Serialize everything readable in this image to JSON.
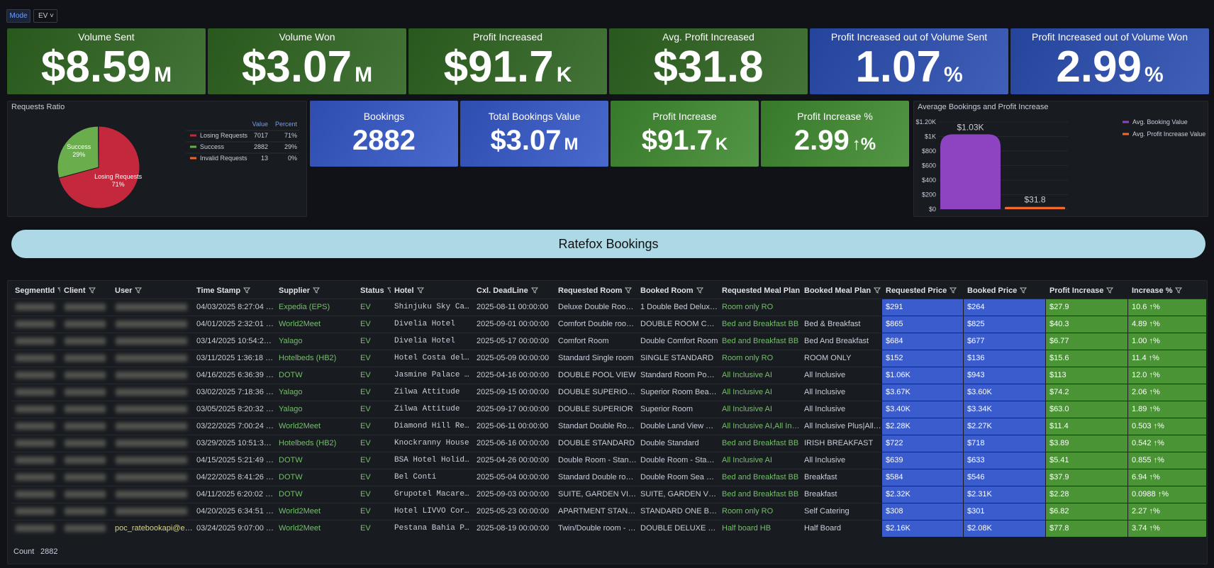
{
  "toolbar": {
    "mode_label": "Mode",
    "mode_value": "EV"
  },
  "stats_top": [
    {
      "title": "Volume Sent",
      "value": "$8.59",
      "unit": "M",
      "color": "#2f6421"
    },
    {
      "title": "Volume Won",
      "value": "$3.07",
      "unit": "M",
      "color": "#2f6421"
    },
    {
      "title": "Profit Increased",
      "value": "$91.7",
      "unit": "K",
      "color": "#2f6421"
    },
    {
      "title": "Avg. Profit Increased",
      "value": "$31.8",
      "unit": null,
      "color": "#2f6421"
    },
    {
      "title": "Profit Increased out of Volume Sent",
      "value": "1.07",
      "unit": "%",
      "color": "#2a4db0"
    },
    {
      "title": "Profit Increased out of Volume Won",
      "value": "2.99",
      "unit": "%",
      "color": "#2a4db0"
    }
  ],
  "requests_ratio": {
    "type": "pie",
    "title": "Requests Ratio",
    "legend_headers": [
      "Value",
      "Percent"
    ],
    "categories": [
      "Losing Requests",
      "Success",
      "Invalid Requests"
    ],
    "values": [
      7017,
      2882,
      13
    ],
    "percent_labels": [
      "71%",
      "29%",
      "0%"
    ],
    "colors": [
      "#c4283c",
      "#6aad4d",
      "#f2652a"
    ]
  },
  "stats_mid": [
    {
      "title": "Bookings",
      "value": 2882,
      "unit": null,
      "color": "#3558c8"
    },
    {
      "title": "Total Bookings Value",
      "value": "$3.07",
      "unit": "M",
      "color": "#3558c8"
    },
    {
      "title": "Profit Increase",
      "value": "$91.7",
      "unit": "K",
      "color": "#3f8a30"
    },
    {
      "title": "Profit Increase %",
      "value": "2.99",
      "unit": "↑%",
      "color": "#3f8a30"
    }
  ],
  "avg_chart": {
    "type": "bar",
    "title": "Average Bookings and Profit Increase",
    "series": [
      {
        "name": "Avg. Booking Value",
        "color": "#8e44c0",
        "values": [
          1030
        ],
        "value_labels": [
          "$1.03K"
        ]
      },
      {
        "name": "Avg. Profit Increase Value",
        "color": "#f4692b",
        "values": [
          31.8
        ],
        "value_labels": [
          "$31.8"
        ]
      }
    ],
    "ylim": [
      0,
      1200
    ],
    "yticks": [
      {
        "value": 0,
        "label": "$0"
      },
      {
        "value": 200,
        "label": "$200"
      },
      {
        "value": 400,
        "label": "$400"
      },
      {
        "value": 600,
        "label": "$600"
      },
      {
        "value": 800,
        "label": "$800"
      },
      {
        "value": 1000,
        "label": "$1K"
      },
      {
        "value": 1200,
        "label": "$1.20K"
      }
    ]
  },
  "banner": {
    "title": "Ratefox Bookings"
  },
  "table": {
    "columns": [
      {
        "name": "SegmentId"
      },
      {
        "name": "Client"
      },
      {
        "name": "User"
      },
      {
        "name": "Time Stamp"
      },
      {
        "name": "Supplier",
        "text": "#73bf69"
      },
      {
        "name": "Status",
        "text": "#73bf69"
      },
      {
        "name": "Hotel",
        "mono": true
      },
      {
        "name": "Cxl. DeadLine"
      },
      {
        "name": "Requested Room"
      },
      {
        "name": "Booked Room"
      },
      {
        "name": "Requested Meal Plan",
        "text": "#73bf69"
      },
      {
        "name": "Booked Meal Plan"
      },
      {
        "name": "Requested Price",
        "fill": "#3a5ccc"
      },
      {
        "name": "Booked Price",
        "fill": "#3a5ccc"
      },
      {
        "name": "Profit Increase",
        "fill": "#4b9436"
      },
      {
        "name": "Increase %",
        "fill": "#4b9436"
      }
    ],
    "rows": [
      [
        null,
        null,
        null,
        "04/03/2025 8:27:04 pm",
        "Expedia (EPS)",
        "EV",
        "Shinjuku Sky Caps",
        "2025-08-11 00:00:00",
        "Deluxe Double Room, Pri",
        "1 Double Bed Deluxe Dou",
        "Room only RO",
        null,
        "$291",
        "$264",
        "$27.9",
        "10.6 ↑%"
      ],
      [
        null,
        null,
        null,
        "04/01/2025 2:32:01 pm",
        "World2Meet",
        "EV",
        "Divelia Hotel",
        "2025-09-01 00:00:00",
        "Comfort Double room (fu",
        "DOUBLE ROOM COMFORT",
        "Bed and Breakfast BB",
        "Bed & Breakfast",
        "$865",
        "$825",
        "$40.3",
        "4.89 ↑%"
      ],
      [
        null,
        null,
        null,
        "03/14/2025 10:54:26 pm",
        "Yalago",
        "EV",
        "Divelia Hotel",
        "2025-05-17 00:00:00",
        "Comfort Room",
        "Double Comfort Room",
        "Bed and Breakfast BB",
        "Bed And Breakfast",
        "$684",
        "$677",
        "$6.77",
        "1.00 ↑%"
      ],
      [
        null,
        null,
        null,
        "03/11/2025 1:36:18 am",
        "Hotelbeds (HB2)",
        "EV",
        "Hotel Costa del S",
        "2025-05-09 00:00:00",
        "Standard Single room",
        "SINGLE STANDARD",
        "Room only RO",
        "ROOM ONLY",
        "$152",
        "$136",
        "$15.6",
        "11.4 ↑%"
      ],
      [
        null,
        null,
        null,
        "04/16/2025 6:36:39 pm",
        "DOTW",
        "EV",
        "Jasmine Palace Re",
        "2025-04-16 00:00:00",
        "DOUBLE POOL VIEW",
        "Standard Room Pool View",
        "All Inclusive AI",
        "All Inclusive",
        "$1.06K",
        "$943",
        "$113",
        "12.0 ↑%"
      ],
      [
        null,
        null,
        null,
        "03/02/2025 7:18:36 pm",
        "Yalago",
        "EV",
        "Zilwa Attitude",
        "2025-09-15 00:00:00",
        "DOUBLE SUPERIOR BEAC",
        "Superior Room Beachfro",
        "All Inclusive AI",
        "All Inclusive",
        "$3.67K",
        "$3.60K",
        "$74.2",
        "2.06 ↑%"
      ],
      [
        null,
        null,
        null,
        "03/05/2025 8:20:32 pm",
        "Yalago",
        "EV",
        "Zilwa Attitude",
        "2025-09-17 00:00:00",
        "DOUBLE SUPERIOR",
        "Superior Room",
        "All Inclusive AI",
        "All Inclusive",
        "$3.40K",
        "$3.34K",
        "$63.0",
        "1.89 ↑%"
      ],
      [
        null,
        null,
        null,
        "03/22/2025 7:00:24 pm",
        "World2Meet",
        "EV",
        "Diamond Hill Reso",
        "2025-06-11 00:00:00",
        "Standart Double Room La",
        "Double Land View Balco",
        "All Inclusive AI,All Inclusi",
        "All Inclusive Plus|All Incl",
        "$2.28K",
        "$2.27K",
        "$11.4",
        "0.503 ↑%"
      ],
      [
        null,
        null,
        null,
        "03/29/2025 10:51:34 am",
        "Hotelbeds (HB2)",
        "EV",
        "Knockranny House ",
        "2025-06-16 00:00:00",
        "DOUBLE STANDARD",
        "Double Standard",
        "Bed and Breakfast BB",
        "IRISH BREAKFAST",
        "$722",
        "$718",
        "$3.89",
        "0.542 ↑%"
      ],
      [
        null,
        null,
        null,
        "04/15/2025 5:21:49 pm",
        "DOTW",
        "EV",
        "BSA Hotel Holiday",
        "2025-04-26 00:00:00",
        "Double Room - Standard",
        "Double Room - Standard",
        "All Inclusive AI",
        "All Inclusive",
        "$639",
        "$633",
        "$5.41",
        "0.855 ↑%"
      ],
      [
        null,
        null,
        null,
        "04/22/2025 8:41:26 pm",
        "DOTW",
        "EV",
        "Bel Conti",
        "2025-05-04 00:00:00",
        "Standard Double room w",
        "Double Room Sea View",
        "Bed and Breakfast BB",
        "Breakfast",
        "$584",
        "$546",
        "$37.9",
        "6.94 ↑%"
      ],
      [
        null,
        null,
        null,
        "04/11/2025 6:20:02 pm",
        "DOTW",
        "EV",
        "Grupotel Macarell",
        "2025-09-03 00:00:00",
        "SUITE, GARDEN VIEW, B",
        "SUITE, GARDEN VIEW, B",
        "Bed and Breakfast BB",
        "Breakfast",
        "$2.32K",
        "$2.31K",
        "$2.28",
        "0.0988 ↑%"
      ],
      [
        null,
        null,
        null,
        "04/20/2025 6:34:51 pm",
        "World2Meet",
        "EV",
        "Hotel LIVVO Corra",
        "2025-05-23 00:00:00",
        "APARTMENT STANDARD",
        "STANDARD ONE BEDROOM",
        "Room only RO",
        "Self Catering",
        "$308",
        "$301",
        "$6.82",
        "2.27 ↑%"
      ],
      [
        null,
        null,
        "poc_ratebookapi@esky",
        "03/24/2025 9:07:00 am",
        "World2Meet",
        "EV",
        "Pestana Bahia Pra",
        "2025-08-19 00:00:00",
        "Twin/Double room - De L",
        "DOUBLE DELUXE ROOM",
        "Half board HB",
        "Half Board",
        "$2.16K",
        "$2.08K",
        "$77.8",
        "3.74 ↑%"
      ]
    ],
    "footer_label": "Count",
    "footer_value": 2882
  }
}
